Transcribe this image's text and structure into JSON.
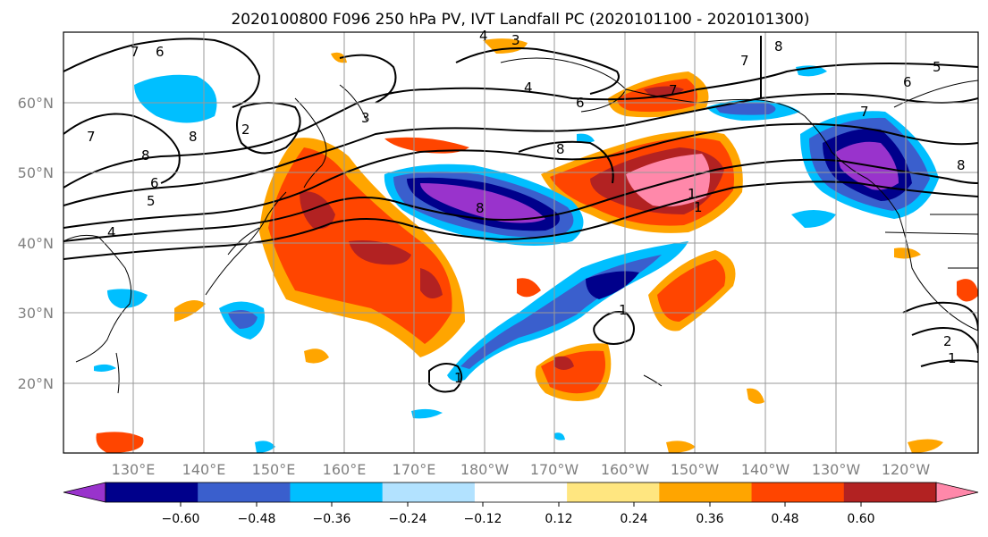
{
  "title": "2020100800 F096 250 hPa PV, IVT Landfall PC (2020101100 - 2020101300)",
  "map": {
    "lon_labels": [
      "130°E",
      "140°E",
      "150°E",
      "160°E",
      "170°E",
      "180°W",
      "170°W",
      "160°W",
      "150°W",
      "140°W",
      "130°W",
      "120°W"
    ],
    "lat_labels": [
      "60°N",
      "50°N",
      "40°N",
      "30°N",
      "20°N"
    ],
    "contour_labels": [
      "6",
      "7",
      "7",
      "8",
      "8",
      "6",
      "2",
      "4",
      "5",
      "3",
      "4",
      "6",
      "7",
      "8",
      "7",
      "5",
      "6",
      "8",
      "7",
      "4",
      "3",
      "1",
      "1",
      "1",
      "1",
      "2",
      "1",
      "8",
      "8"
    ],
    "colors": {
      "ocean": "#ffffff",
      "coast": "#000000",
      "grid": "#999999"
    }
  },
  "colorbar": {
    "levels": [
      "−0.60",
      "−0.48",
      "−0.36",
      "−0.24",
      "−0.12",
      "0.12",
      "0.24",
      "0.36",
      "0.48",
      "0.60"
    ],
    "colors": [
      "#9933cc",
      "#00008b",
      "#3a5fcd",
      "#00bfff",
      "#b2e2ff",
      "#ffffff",
      "#ffe680",
      "#ffa500",
      "#ff4500",
      "#b22222",
      "#ff88aa"
    ]
  }
}
